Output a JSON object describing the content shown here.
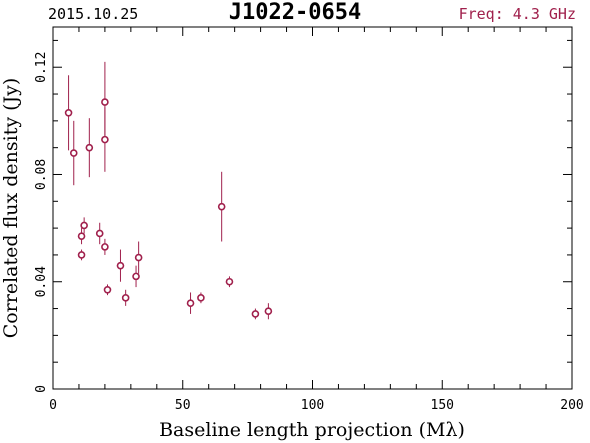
{
  "header": {
    "date": "2015.10.25",
    "title": "J1022-0654",
    "freq": "Freq: 4.3 GHz"
  },
  "colors": {
    "data": "#a0204c",
    "axes": "#000000"
  },
  "chart_data": {
    "type": "scatter",
    "title": "J1022-0654",
    "xlabel": "Baseline length projection (Mλ)",
    "ylabel": "Correlated flux density (Jy)",
    "xlim": [
      0,
      200
    ],
    "ylim": [
      0,
      0.135
    ],
    "x_ticks": [
      0,
      50,
      100,
      150,
      200
    ],
    "y_ticks": [
      0,
      0.04,
      0.08,
      0.12
    ],
    "y_tick_labels": [
      "0",
      "0.04",
      "0.08",
      "0.12"
    ],
    "grid": false,
    "error_bars": true,
    "points": [
      {
        "x": 6,
        "y": 0.103,
        "err": 0.014
      },
      {
        "x": 8,
        "y": 0.088,
        "err": 0.012
      },
      {
        "x": 11,
        "y": 0.057,
        "err": 0.003
      },
      {
        "x": 11,
        "y": 0.05,
        "err": 0.002
      },
      {
        "x": 12,
        "y": 0.061,
        "err": 0.003
      },
      {
        "x": 14,
        "y": 0.09,
        "err": 0.011
      },
      {
        "x": 18,
        "y": 0.058,
        "err": 0.004
      },
      {
        "x": 20,
        "y": 0.053,
        "err": 0.003
      },
      {
        "x": 20,
        "y": 0.107,
        "err": 0.015
      },
      {
        "x": 20,
        "y": 0.093,
        "err": 0.012
      },
      {
        "x": 21,
        "y": 0.037,
        "err": 0.002
      },
      {
        "x": 26,
        "y": 0.046,
        "err": 0.006
      },
      {
        "x": 28,
        "y": 0.034,
        "err": 0.003
      },
      {
        "x": 32,
        "y": 0.042,
        "err": 0.004
      },
      {
        "x": 33,
        "y": 0.049,
        "err": 0.006
      },
      {
        "x": 53,
        "y": 0.032,
        "err": 0.004
      },
      {
        "x": 57,
        "y": 0.034,
        "err": 0.002
      },
      {
        "x": 65,
        "y": 0.068,
        "err": 0.013
      },
      {
        "x": 68,
        "y": 0.04,
        "err": 0.002
      },
      {
        "x": 78,
        "y": 0.028,
        "err": 0.002
      },
      {
        "x": 83,
        "y": 0.029,
        "err": 0.003
      }
    ]
  }
}
